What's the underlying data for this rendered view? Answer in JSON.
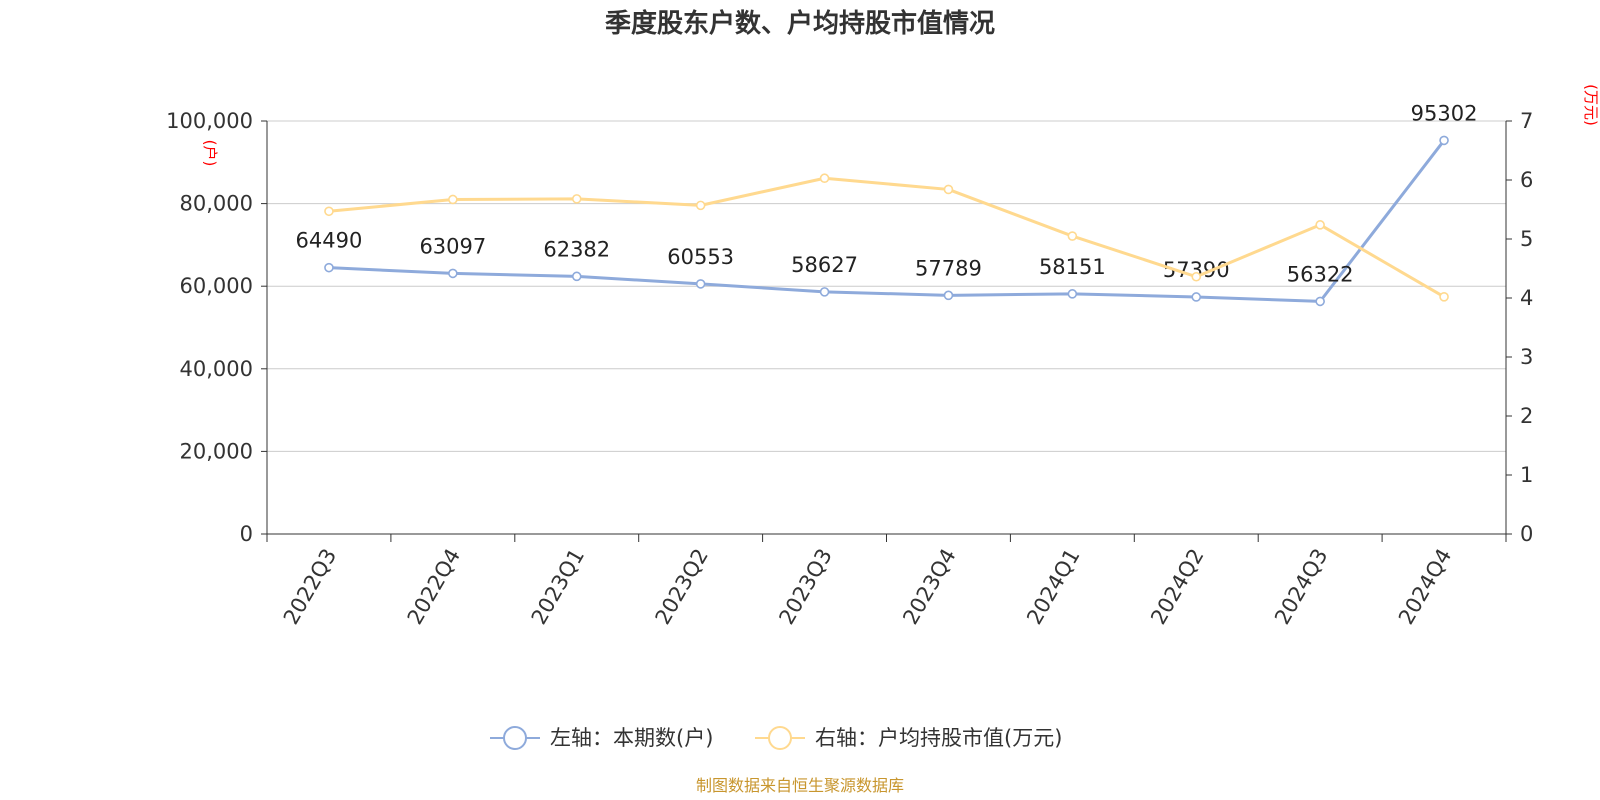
{
  "title": "季度股东户数、户均持股市值情况",
  "left_unit": "(户)",
  "right_unit": "(万元)",
  "source": "制图数据来自恒生聚源数据库",
  "colors": {
    "left_series": "#8eaadb",
    "right_series": "#ffd98f",
    "unit": "#ff0000",
    "source": "#c8962e"
  },
  "chart_data": {
    "type": "line",
    "categories": [
      "2022Q3",
      "2022Q4",
      "2023Q1",
      "2023Q2",
      "2023Q3",
      "2023Q4",
      "2024Q1",
      "2024Q2",
      "2024Q3",
      "2024Q4"
    ],
    "series": [
      {
        "name": "左轴：本期数(户)",
        "axis": "left",
        "values": [
          64490,
          63097,
          62382,
          60553,
          58627,
          57789,
          58151,
          57390,
          56322,
          95302
        ]
      },
      {
        "name": "右轴：户均持股市值(万元)",
        "axis": "right",
        "values": [
          5.47,
          5.67,
          5.68,
          5.57,
          6.03,
          5.84,
          5.05,
          4.36,
          5.24,
          4.02
        ]
      }
    ],
    "left_axis": {
      "ylim": [
        0,
        100000
      ],
      "ticks": [
        "0",
        "20,000",
        "40,000",
        "60,000",
        "80,000",
        "100,000"
      ]
    },
    "right_axis": {
      "ylim": [
        0,
        7
      ],
      "ticks": [
        "0",
        "1",
        "2",
        "3",
        "4",
        "5",
        "6",
        "7"
      ]
    },
    "grid": true,
    "legend": "bottom"
  }
}
